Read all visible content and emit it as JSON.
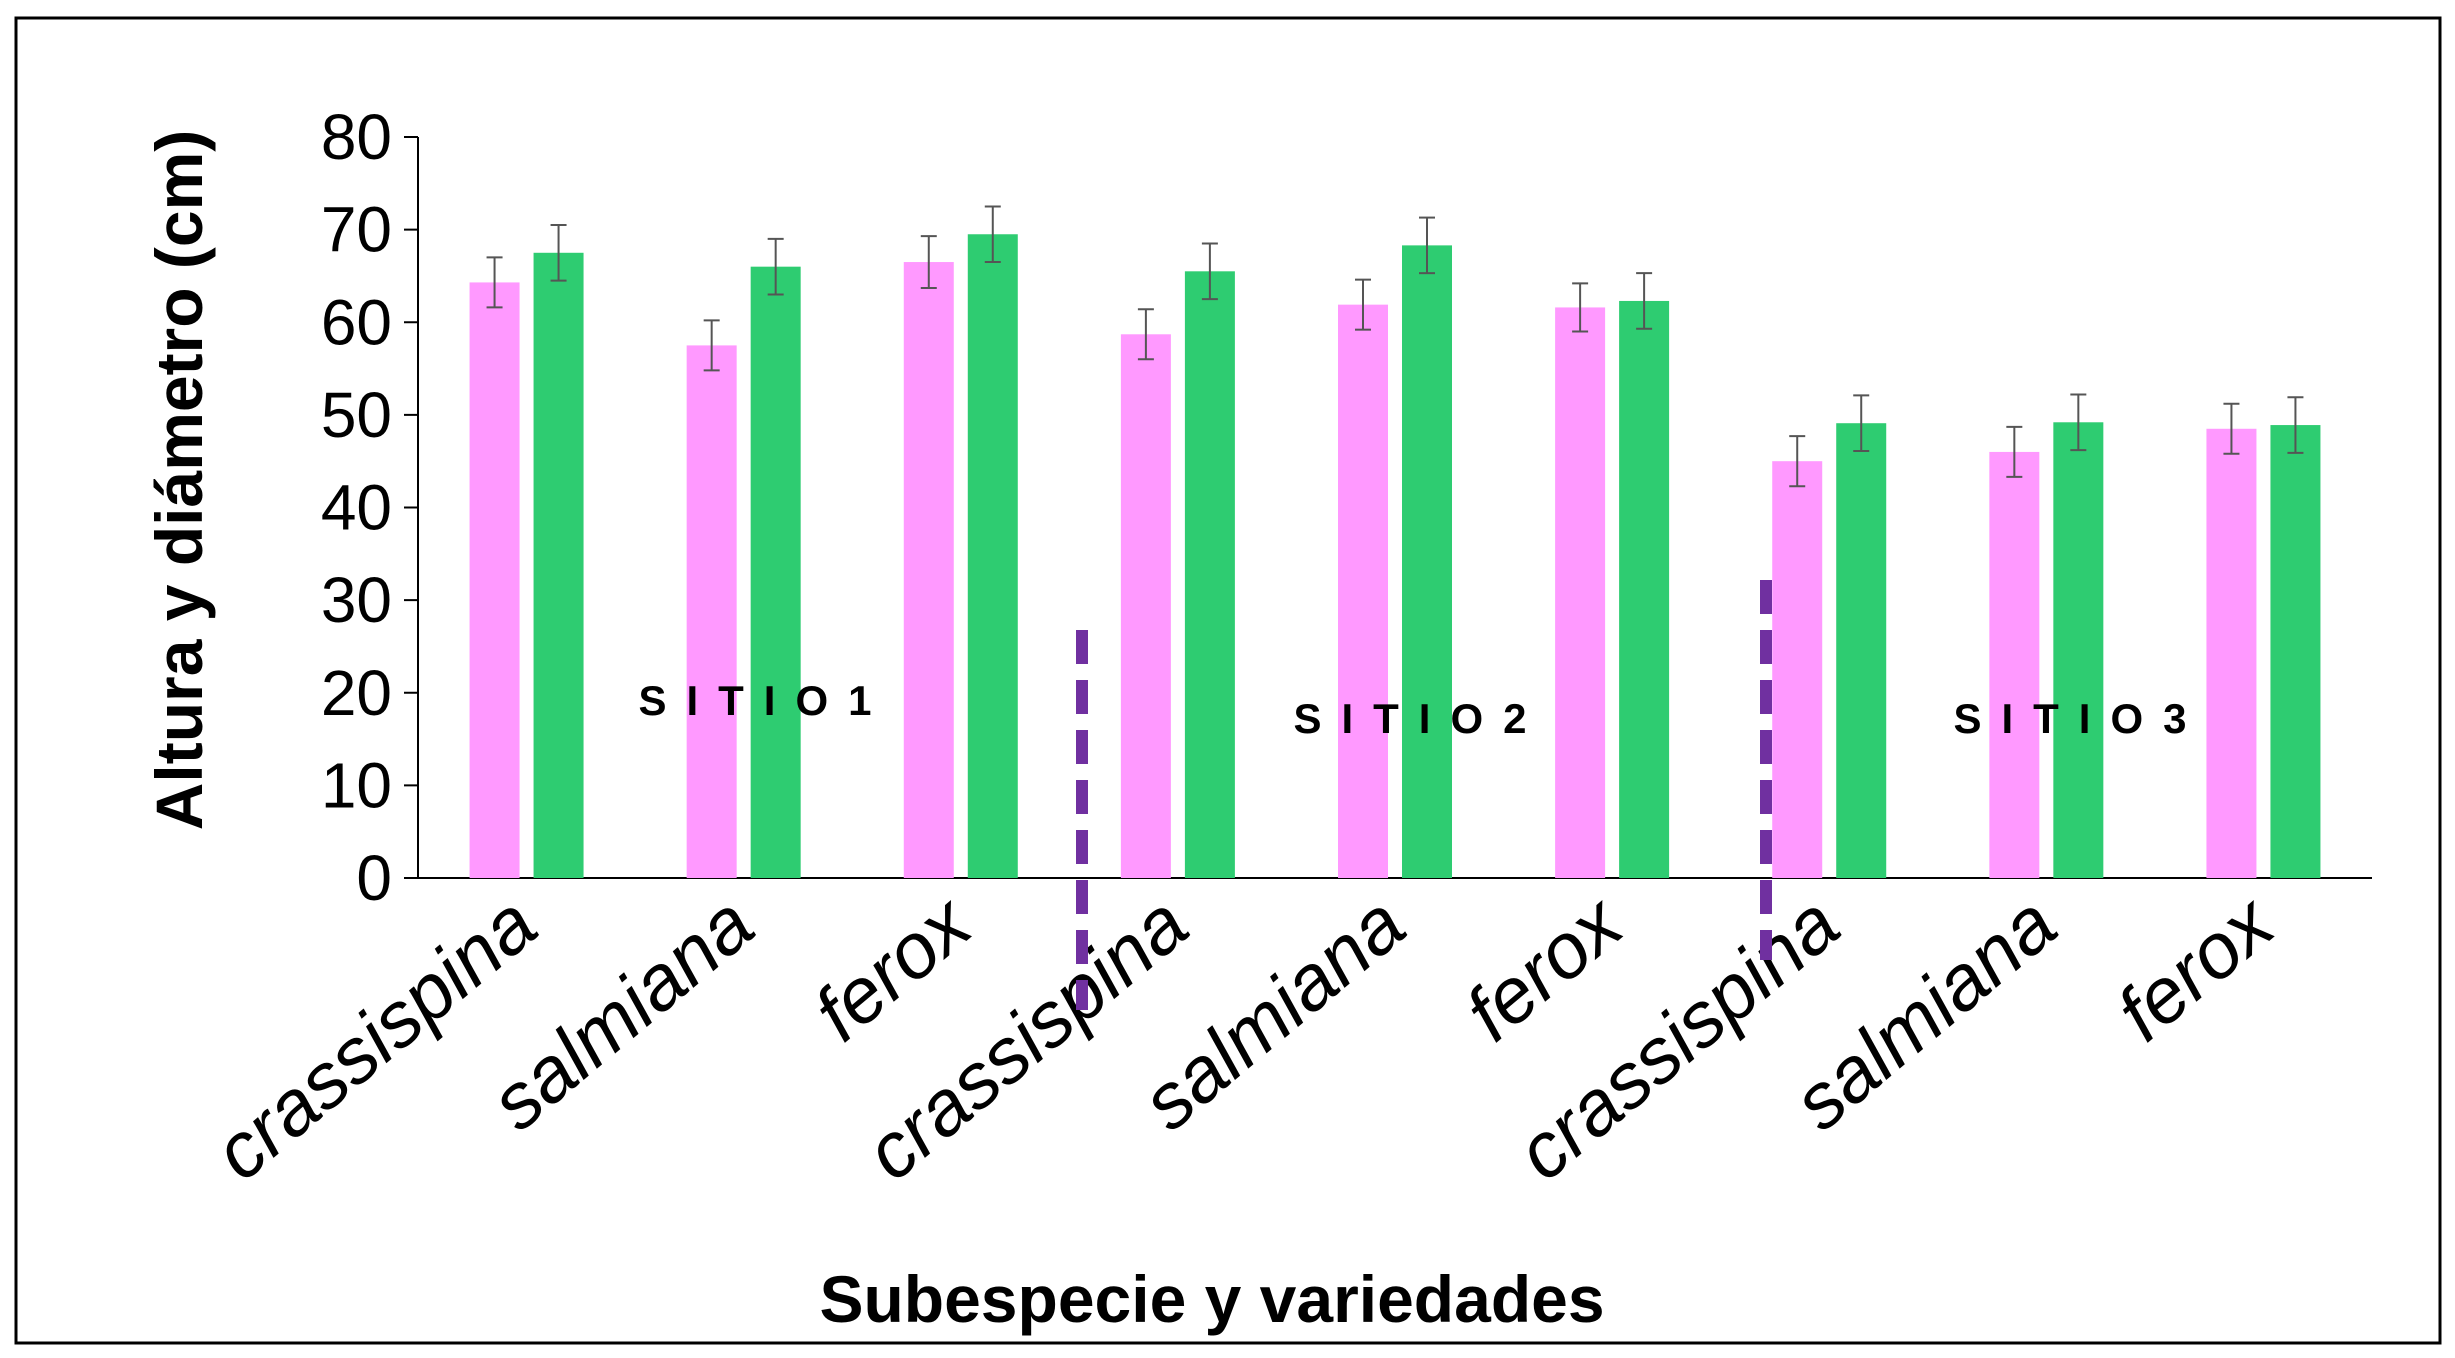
{
  "chart_data": {
    "type": "bar",
    "title": "",
    "xlabel": "Subespecie y variedades",
    "ylabel": "Altura y diámetro (cm)",
    "ylim": [
      0,
      80
    ],
    "yticks": [
      0,
      10,
      20,
      30,
      40,
      50,
      60,
      70,
      80
    ],
    "categories": [
      "crassispina",
      "salmiana",
      "ferox",
      "crassispina",
      "salmiana",
      "ferox",
      "crassispina",
      "salmiana",
      "ferox"
    ],
    "series": [
      {
        "color": "#ff99ff",
        "values": [
          64.3,
          57.5,
          66.5,
          58.7,
          61.9,
          61.6,
          45.0,
          46.0,
          48.5
        ],
        "errors": [
          2.7,
          2.7,
          2.8,
          2.7,
          2.7,
          2.6,
          2.7,
          2.7,
          2.7
        ]
      },
      {
        "color": "#2ecc71",
        "values": [
          67.5,
          66.0,
          69.5,
          65.5,
          68.3,
          62.3,
          49.1,
          49.2,
          48.9
        ],
        "errors": [
          3.0,
          3.0,
          3.0,
          3.0,
          3.0,
          3.0,
          3.0,
          3.0,
          3.0
        ]
      }
    ],
    "groups": [
      "S I T I O 1",
      "S I T I O 2",
      "S I T I O 3"
    ],
    "divider_color": "#7030a0",
    "legend": "none",
    "grid": false
  }
}
